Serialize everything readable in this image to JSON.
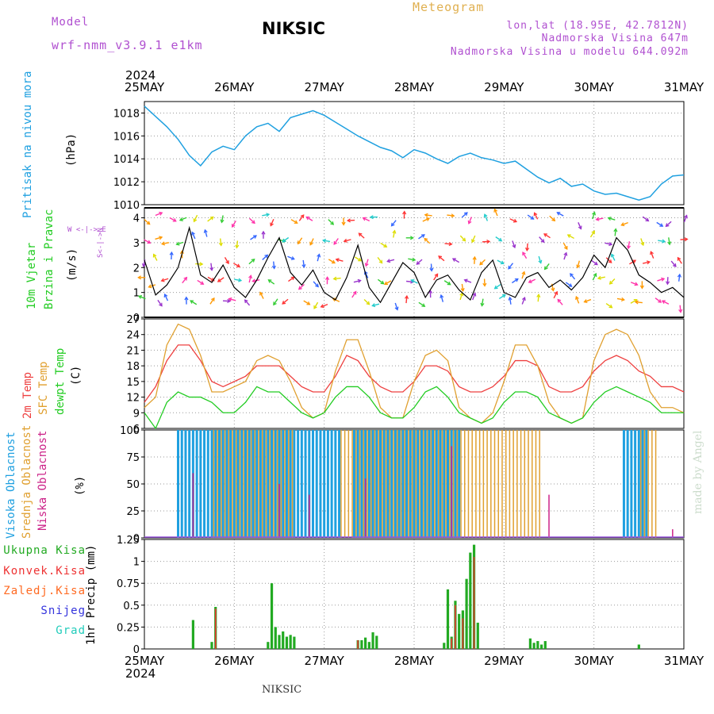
{
  "header": {
    "model_label": "Model",
    "model_name": "wrf-nmm_v3.9.1  e1km",
    "station": "NIKSIC",
    "meteogram": "Meteogram",
    "lonlat": "lon,lat (18.95E, 42.7812N)",
    "altitude": "Nadmorska Visina 647m",
    "model_altitude": "Nadmorska Visina u modelu 644.092m",
    "year_top": "2024",
    "year_bottom": "2024",
    "footer_station": "NIKSIC",
    "credit": "made by Angel"
  },
  "colors": {
    "pressure": "#1fa0e0",
    "wind_label": "#22cc22",
    "temp2m": "#ee4040",
    "sfc_temp": "#e0a030",
    "dewpt": "#22cc22",
    "cloud_high": "#1fa0e0",
    "cloud_mid": "#e0a030",
    "cloud_low": "#cc2288",
    "total_precip": "#22aa22",
    "conv_precip": "#ee3333",
    "freezing": "#ff6a22",
    "snow": "#3333dd",
    "hail": "#22ccbb",
    "header_purple": "#b050d0",
    "header_orange": "#e0b050"
  },
  "axes": {
    "days": [
      "25MAY",
      "26MAY",
      "27MAY",
      "28MAY",
      "29MAY",
      "30MAY",
      "31MAY"
    ]
  },
  "panels": {
    "pressure": {
      "label": "Pritisak na nivou mora",
      "unit": "(hPa)"
    },
    "wind": {
      "label1": "10m Vjetar",
      "label2": "Brzina i Pravac",
      "unit": "(m/s)",
      "compass": "W <-|-> E",
      "compass2": "S<-|->N"
    },
    "temp": {
      "label1": "2m Temp",
      "label2": "SFC Temp",
      "label3": "dewpt Temp",
      "unit": "(C)"
    },
    "cloud": {
      "label1": "Visoka Oblacnost",
      "label2": "Srednja Oblacnost",
      "label3": "Niska Oblacnost",
      "unit": "(%)"
    },
    "precip": {
      "unit": "1hr Precip (mm)",
      "legend": [
        "Ukupna Kisa",
        "Konvek.Kisa",
        "Zaledj.Kisa",
        "Snijeg",
        "Grad"
      ]
    }
  },
  "chart_data": [
    {
      "type": "line",
      "name": "pressure",
      "ylim": [
        1010,
        1019
      ],
      "yticks": [
        1010,
        1012,
        1014,
        1016,
        1018
      ],
      "xlim_hours": [
        0,
        144
      ],
      "x": [
        0,
        3,
        6,
        9,
        12,
        15,
        18,
        21,
        24,
        27,
        30,
        33,
        36,
        39,
        42,
        45,
        48,
        51,
        54,
        57,
        60,
        63,
        66,
        69,
        72,
        75,
        78,
        81,
        84,
        87,
        90,
        93,
        96,
        99,
        102,
        105,
        108,
        111,
        114,
        117,
        120,
        123,
        126,
        129,
        132,
        135,
        138,
        141,
        144
      ],
      "values": [
        1018.6,
        1017.7,
        1016.8,
        1015.7,
        1014.3,
        1013.4,
        1014.6,
        1015.1,
        1014.8,
        1016.0,
        1016.8,
        1017.1,
        1016.4,
        1017.6,
        1017.9,
        1018.2,
        1017.8,
        1017.2,
        1016.6,
        1016.0,
        1015.5,
        1015.0,
        1014.7,
        1014.1,
        1014.8,
        1014.5,
        1014.0,
        1013.6,
        1014.2,
        1014.5,
        1014.1,
        1013.9,
        1013.6,
        1013.8,
        1013.1,
        1012.4,
        1011.9,
        1012.3,
        1011.6,
        1011.8,
        1011.2,
        1010.9,
        1011.0,
        1010.7,
        1010.4,
        1010.7,
        1011.8,
        1012.5,
        1012.6
      ]
    },
    {
      "type": "line",
      "name": "wind",
      "ylim": [
        0,
        4.4
      ],
      "yticks": [
        0,
        1,
        2,
        3,
        4
      ],
      "x": [
        0,
        3,
        6,
        9,
        12,
        15,
        18,
        21,
        24,
        27,
        30,
        33,
        36,
        39,
        42,
        45,
        48,
        51,
        54,
        57,
        60,
        63,
        66,
        69,
        72,
        75,
        78,
        81,
        84,
        87,
        90,
        93,
        96,
        99,
        102,
        105,
        108,
        111,
        114,
        117,
        120,
        123,
        126,
        129,
        132,
        135,
        138,
        141,
        144
      ],
      "values": [
        2.3,
        0.9,
        1.3,
        2.0,
        3.6,
        1.7,
        1.4,
        2.1,
        1.2,
        0.8,
        1.5,
        2.4,
        3.2,
        1.8,
        1.3,
        1.9,
        1.0,
        0.7,
        1.6,
        2.9,
        1.2,
        0.6,
        1.4,
        2.2,
        1.8,
        0.8,
        1.5,
        1.7,
        1.1,
        0.7,
        1.8,
        2.3,
        1.0,
        0.8,
        1.6,
        1.8,
        1.2,
        1.5,
        1.1,
        1.6,
        2.5,
        2.0,
        3.2,
        2.7,
        1.7,
        1.4,
        1.0,
        1.2,
        0.8
      ]
    },
    {
      "type": "line",
      "name": "temperature",
      "ylim": [
        6,
        27
      ],
      "yticks": [
        6,
        9,
        12,
        15,
        18,
        21,
        24,
        27
      ],
      "series": [
        {
          "name": "2m Temp",
          "x": [
            0,
            3,
            6,
            9,
            12,
            15,
            18,
            21,
            24,
            27,
            30,
            33,
            36,
            39,
            42,
            45,
            48,
            51,
            54,
            57,
            60,
            63,
            66,
            69,
            72,
            75,
            78,
            81,
            84,
            87,
            90,
            93,
            96,
            99,
            102,
            105,
            108,
            111,
            114,
            117,
            120,
            123,
            126,
            129,
            132,
            135,
            138,
            141,
            144
          ],
          "values": [
            11,
            14,
            19,
            22,
            22,
            19,
            15,
            14,
            15,
            16,
            18,
            18,
            18,
            16,
            14,
            13,
            13,
            16,
            20,
            19,
            16,
            14,
            13,
            13,
            15,
            18,
            18,
            17,
            14,
            13,
            13,
            14,
            16,
            19,
            19,
            18,
            14,
            13,
            13,
            14,
            17,
            19,
            20,
            19,
            17,
            16,
            14,
            14,
            13
          ]
        },
        {
          "name": "SFC Temp",
          "x": [
            0,
            3,
            6,
            9,
            12,
            15,
            18,
            21,
            24,
            27,
            30,
            33,
            36,
            39,
            42,
            45,
            48,
            51,
            54,
            57,
            60,
            63,
            66,
            69,
            72,
            75,
            78,
            81,
            84,
            87,
            90,
            93,
            96,
            99,
            102,
            105,
            108,
            111,
            114,
            117,
            120,
            123,
            126,
            129,
            132,
            135,
            138,
            141,
            144
          ],
          "values": [
            10,
            12,
            22,
            26,
            25,
            20,
            13,
            13,
            14,
            15,
            19,
            20,
            19,
            15,
            10,
            8,
            9,
            17,
            23,
            23,
            17,
            10,
            8,
            8,
            15,
            20,
            21,
            19,
            10,
            8,
            7,
            9,
            15,
            22,
            22,
            18,
            11,
            8,
            7,
            8,
            19,
            24,
            25,
            24,
            20,
            13,
            10,
            10,
            9
          ]
        },
        {
          "name": "dewpt Temp",
          "x": [
            0,
            3,
            6,
            9,
            12,
            15,
            18,
            21,
            24,
            27,
            30,
            33,
            36,
            39,
            42,
            45,
            48,
            51,
            54,
            57,
            60,
            63,
            66,
            69,
            72,
            75,
            78,
            81,
            84,
            87,
            90,
            93,
            96,
            99,
            102,
            105,
            108,
            111,
            114,
            117,
            120,
            123,
            126,
            129,
            132,
            135,
            138,
            141,
            144
          ],
          "values": [
            9,
            6,
            11,
            13,
            12,
            12,
            11,
            9,
            9,
            11,
            14,
            13,
            13,
            11,
            9,
            8,
            9,
            12,
            14,
            14,
            12,
            9,
            8,
            8,
            10,
            13,
            14,
            12,
            9,
            8,
            7,
            8,
            11,
            13,
            13,
            12,
            9,
            8,
            7,
            8,
            11,
            13,
            14,
            13,
            12,
            11,
            9,
            9,
            9
          ]
        }
      ]
    },
    {
      "type": "bar",
      "name": "cloud_cover",
      "ylim": [
        0,
        100
      ],
      "yticks": [
        0,
        25,
        50,
        75,
        100
      ],
      "series": [
        {
          "name": "Visoka Oblacnost",
          "ranges_hours": [
            [
              9,
              52
            ],
            [
              56,
              84
            ],
            [
              128,
              134
            ]
          ],
          "value": 100
        },
        {
          "name": "Srednja Oblacnost",
          "ranges_hours": [
            [
              18,
              40
            ],
            [
              52,
              106
            ],
            [
              132,
              137
            ]
          ],
          "value": 100
        },
        {
          "name": "Niska Oblacnost",
          "hours": [
            13,
            36,
            44,
            59,
            82,
            108,
            141
          ],
          "values": [
            60,
            50,
            40,
            55,
            85,
            40,
            8
          ]
        }
      ]
    },
    {
      "type": "bar",
      "name": "precip_1hr",
      "ylim": [
        0,
        1.25
      ],
      "yticks": [
        0,
        0.25,
        0.5,
        0.75,
        1,
        1.25
      ],
      "hours": [
        13,
        18,
        19,
        33,
        34,
        35,
        36,
        37,
        38,
        39,
        40,
        57,
        58,
        59,
        60,
        61,
        62,
        80,
        81,
        82,
        83,
        84,
        85,
        86,
        87,
        88,
        89,
        103,
        104,
        105,
        106,
        107,
        132
      ],
      "total": [
        0.33,
        0.08,
        0.48,
        0.08,
        0.75,
        0.25,
        0.16,
        0.2,
        0.14,
        0.16,
        0.14,
        0.1,
        0.1,
        0.13,
        0.08,
        0.19,
        0.15,
        0.07,
        0.68,
        0.14,
        0.55,
        0.4,
        0.44,
        0.8,
        1.1,
        1.19,
        0.3,
        0.12,
        0.07,
        0.09,
        0.05,
        0.09,
        0.05
      ],
      "convective": [
        0,
        0,
        0.46,
        0,
        0,
        0,
        0,
        0,
        0,
        0,
        0,
        0.1,
        0,
        0,
        0,
        0,
        0,
        0,
        0,
        0.12,
        0.5,
        0,
        0.35,
        0,
        0,
        1.05,
        0,
        0,
        0,
        0,
        0,
        0,
        0
      ]
    }
  ]
}
